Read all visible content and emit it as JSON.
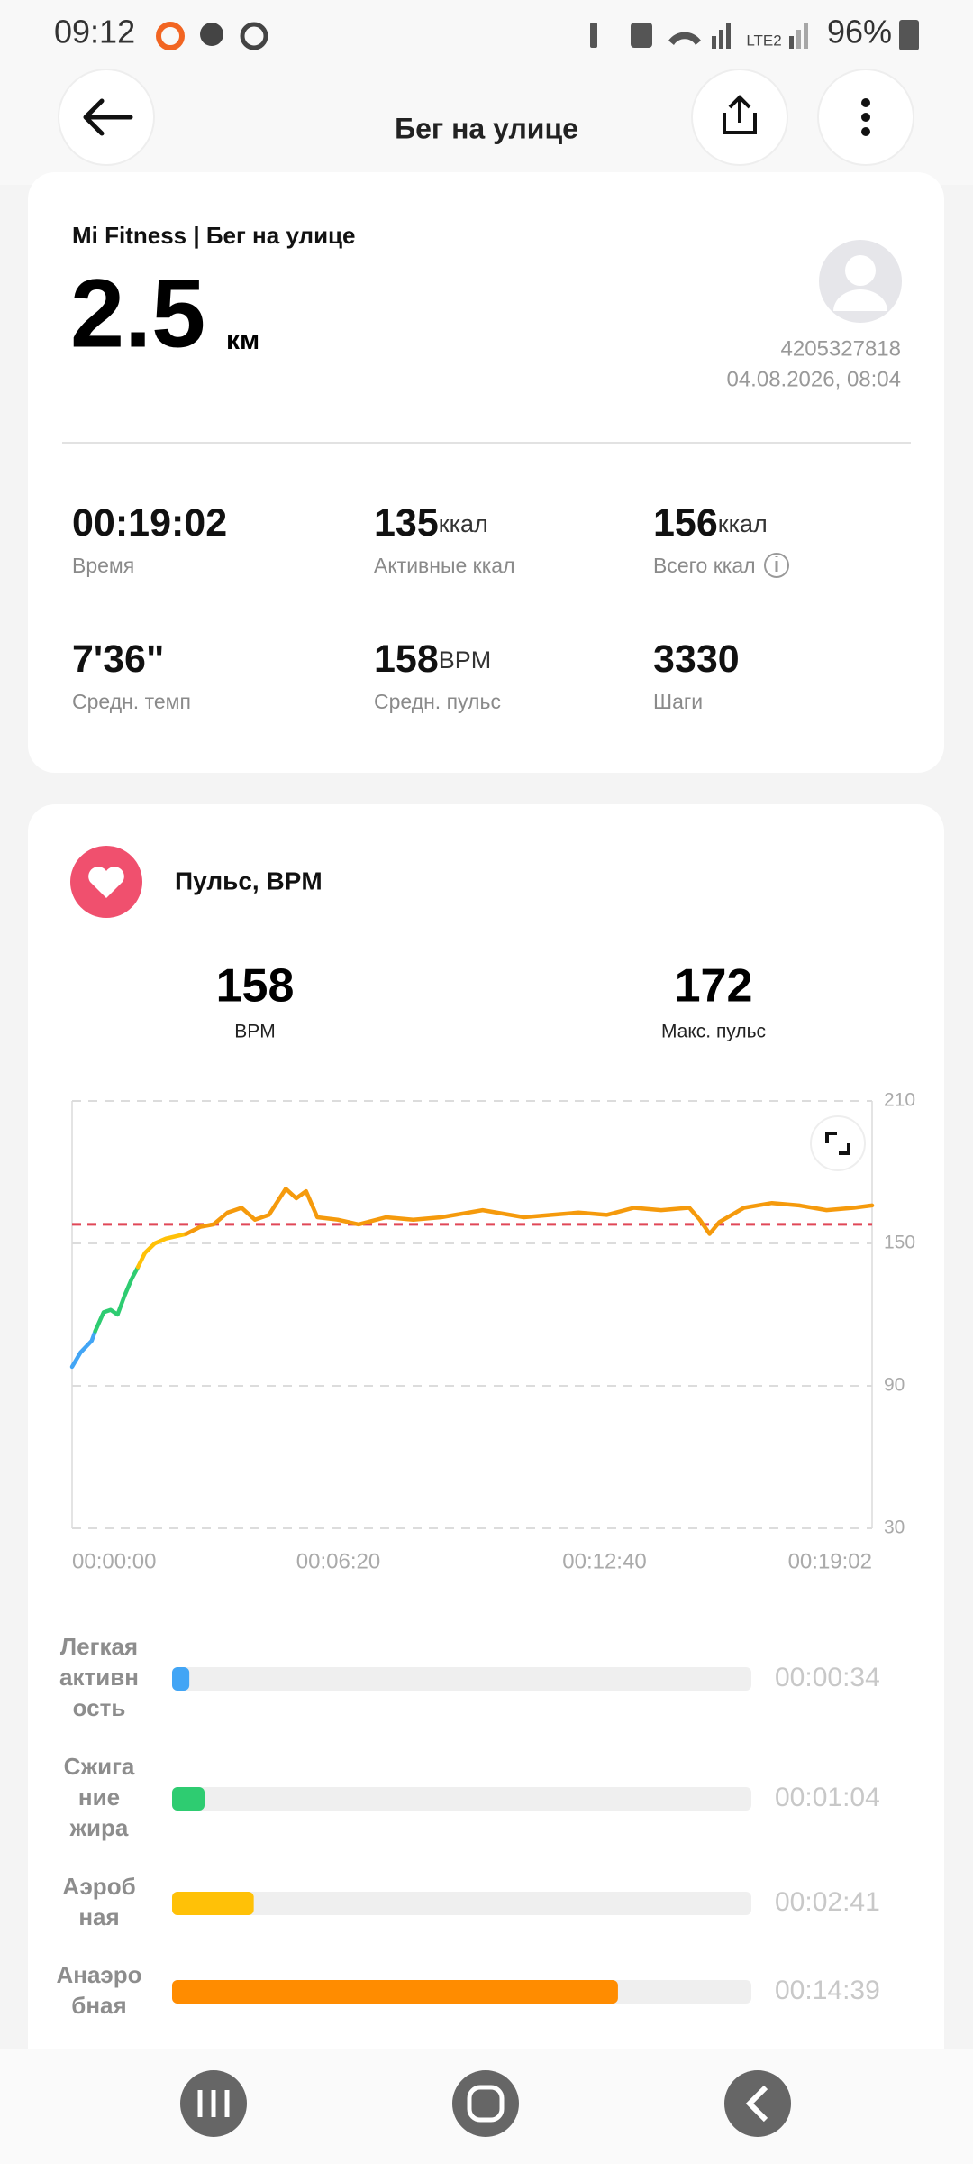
{
  "status_bar": {
    "time": "09:12",
    "network_label": "LTE2",
    "battery": "96%"
  },
  "header": {
    "title": "Бег на улице"
  },
  "summary": {
    "source": "Mi Fitness | Бег на улице",
    "distance": "2.5",
    "distance_unit": "км",
    "user_id": "4205327818",
    "datetime": "04.08.2026, 08:04",
    "stats": [
      {
        "value": "00:19:02",
        "unit": null,
        "label": "Время"
      },
      {
        "value": 135,
        "unit": "ккал",
        "label": "Активные ккал"
      },
      {
        "value": 156,
        "unit": "ккал",
        "label": "Всего ккал"
      },
      {
        "value": "7'36\"",
        "unit": null,
        "label": "Средн. темп"
      },
      {
        "value": 158,
        "unit": "BPM",
        "label": "Средн. пульс"
      },
      {
        "value": 3330,
        "unit": null,
        "label": "Шаги"
      }
    ]
  },
  "heart": {
    "avg": 158,
    "avg_label": "BPM",
    "max": 172,
    "max_label": "Макс. пульс"
  },
  "chart_data": {
    "type": "line",
    "title": "Пульс, BPM",
    "xlim": [
      0,
      1142
    ],
    "xticks": [
      {
        "value": 0,
        "label": "00:00:00"
      },
      {
        "value": 380,
        "label": "00:06:20"
      },
      {
        "value": 760,
        "label": "00:12:40"
      },
      {
        "value": 1142,
        "label": "00:19:02"
      }
    ],
    "ylim": [
      30,
      210
    ],
    "yticks": [
      30,
      90,
      150,
      210
    ],
    "grid": true,
    "reference_line": {
      "value": 158,
      "color": "#e04858"
    },
    "series": [
      {
        "color": "#42a5f5",
        "x": [
          0,
          12,
          28,
          33
        ],
        "values": [
          98,
          104,
          109,
          113
        ]
      },
      {
        "color": "#2ecc71",
        "x": [
          33,
          45,
          55,
          65,
          75,
          85,
          94
        ],
        "values": [
          113,
          121,
          122,
          120,
          128,
          135,
          140
        ]
      },
      {
        "color": "#ffc107",
        "x": [
          94,
          104,
          118,
          134,
          163
        ],
        "values": [
          140,
          146,
          150,
          152,
          154
        ]
      },
      {
        "color": "#f59a0c",
        "x": [
          163,
          183,
          202,
          222,
          242,
          261,
          281,
          305,
          320,
          334,
          350,
          379,
          409,
          448,
          487,
          527,
          586,
          645,
          684,
          723,
          763,
          802,
          841,
          881,
          896,
          910,
          924,
          959,
          999,
          1038,
          1077,
          1116,
          1142
        ],
        "values": [
          154,
          157,
          158,
          163,
          165,
          160,
          162,
          173,
          169,
          172,
          161,
          160,
          158,
          161,
          160,
          161,
          164,
          161,
          162,
          163,
          162,
          165,
          164,
          165,
          160,
          154,
          159,
          165,
          167,
          166,
          164,
          165,
          166
        ]
      }
    ]
  },
  "zones": {
    "type": "bar",
    "xlim": [
      0,
      1142
    ],
    "categories": [
      [
        "Легкая",
        "активн",
        "ость"
      ],
      [
        "Сжига",
        "ние",
        "жира"
      ],
      [
        "Аэроб",
        "ная"
      ],
      [
        "Анаэро",
        "бная"
      ]
    ],
    "values": [
      34,
      64,
      161,
      879
    ],
    "value_labels": [
      "00:00:34",
      "00:01:04",
      "00:02:41",
      "00:14:39"
    ],
    "colors": [
      "#42a5f5",
      "#2ecc71",
      "#ffc107",
      "#ff8c00"
    ]
  }
}
